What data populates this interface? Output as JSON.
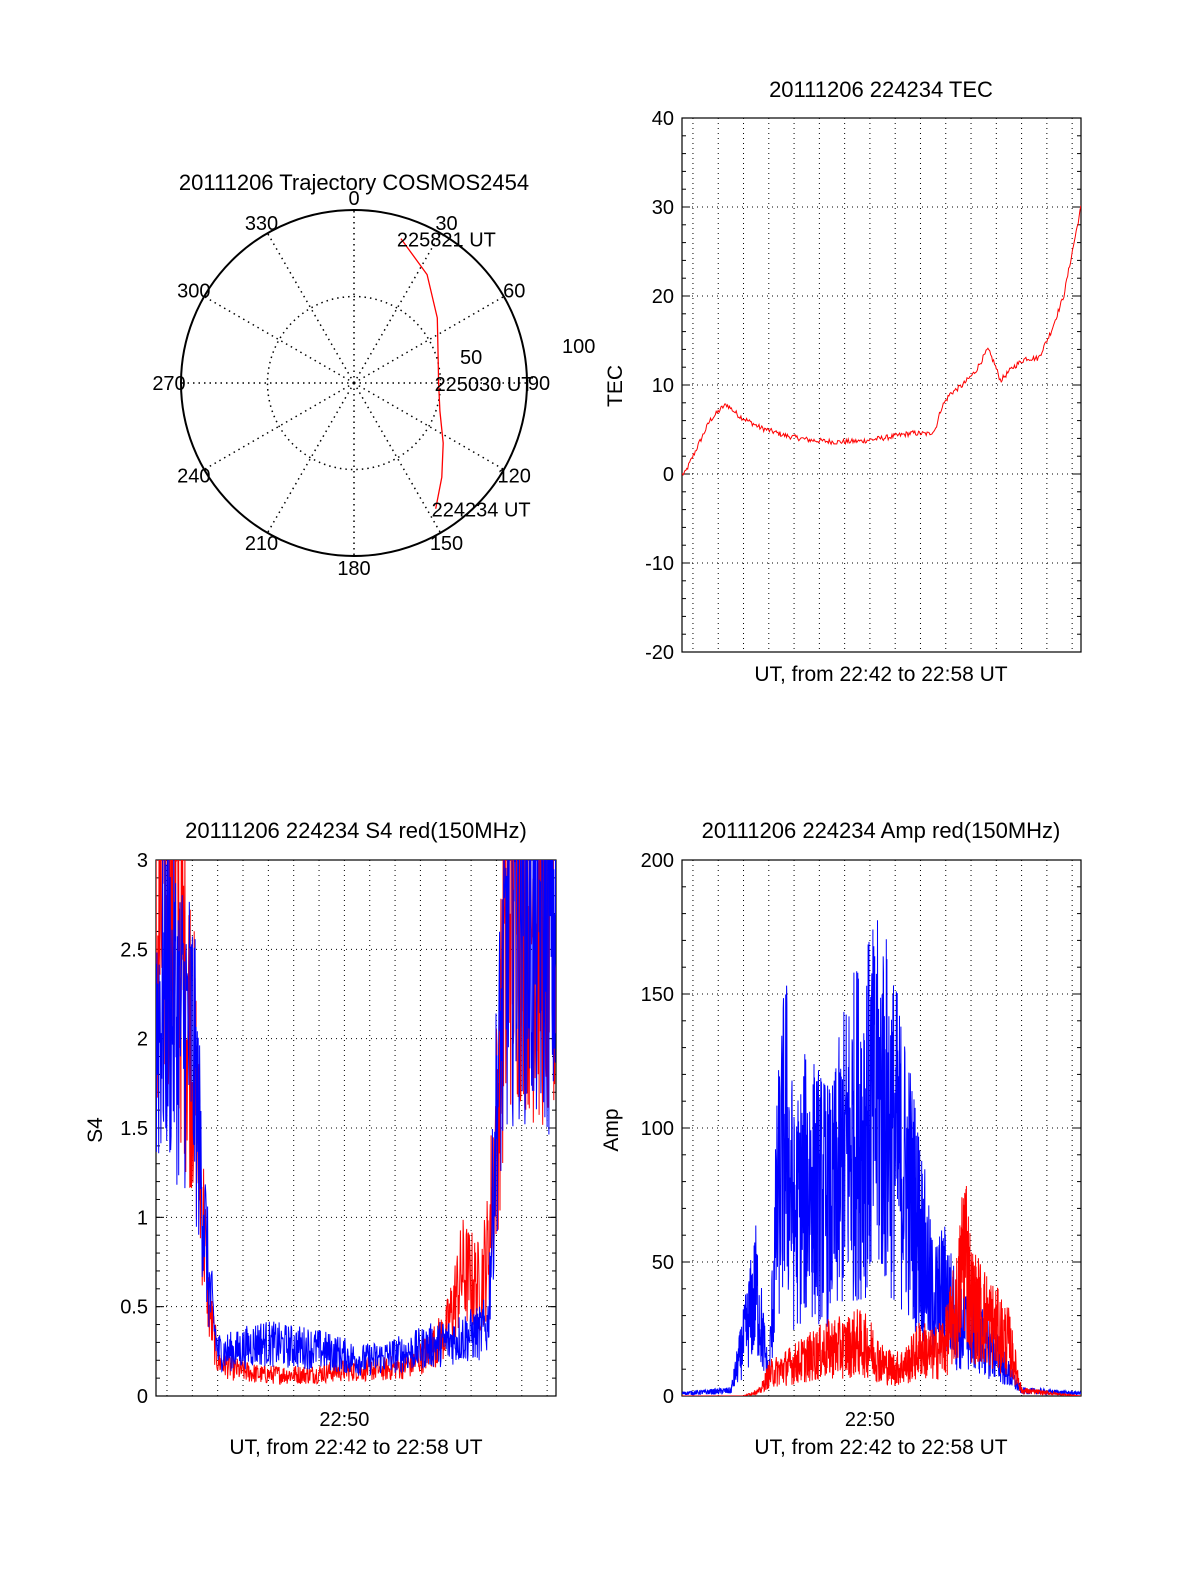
{
  "colors": {
    "red": "#ff0000",
    "blue": "#0000ff",
    "axis": "#000000",
    "grid": "#000000"
  },
  "chart_data": [
    {
      "id": "trajectory",
      "type": "polar",
      "title": "20111206 Trajectory COSMOS2454",
      "angle_ticks": [
        "0",
        "30",
        "60",
        "90",
        "120",
        "150",
        "180",
        "210",
        "240",
        "270",
        "300",
        "330"
      ],
      "radius_ticks": [
        "50",
        "100"
      ],
      "grid": true,
      "series": [
        {
          "color": "#ff0000",
          "points": [
            {
              "az": 18,
              "el": 11,
              "label": "225821 UT"
            },
            {
              "az": 34,
              "el": 22
            },
            {
              "az": 52,
              "el": 35
            },
            {
              "az": 72,
              "el": 44
            },
            {
              "az": 90,
              "el": 46,
              "label": "225030 UT"
            },
            {
              "az": 108,
              "el": 43
            },
            {
              "az": 124,
              "el": 34
            },
            {
              "az": 137,
              "el": 23
            },
            {
              "az": 147,
              "el": 12,
              "label": "224234 UT"
            }
          ]
        }
      ]
    },
    {
      "id": "tec",
      "type": "line",
      "title": "20111206 224234 TEC",
      "xlabel": "UT, from 22:42 to 22:58 UT",
      "ylabel": "TEC",
      "ylim": [
        -20,
        40
      ],
      "yticks": [
        "-20",
        "-10",
        "0",
        "10",
        "20",
        "30",
        "40"
      ],
      "xlim": [
        "22:42:34",
        "22:58:21"
      ],
      "grid": true,
      "series": [
        {
          "color": "#ff0000",
          "x": [
            "22:42:40",
            "22:43:10",
            "22:43:40",
            "22:44:10",
            "22:44:20",
            "22:44:50",
            "22:45:40",
            "22:46:40",
            "22:47:40",
            "22:48:40",
            "22:49:40",
            "22:50:40",
            "22:51:40",
            "22:52:20",
            "22:52:35",
            "22:52:50",
            "22:53:10",
            "22:53:40",
            "22:54:10",
            "22:54:40",
            "22:54:55",
            "22:55:10",
            "22:55:40",
            "22:56:10",
            "22:56:40",
            "22:57:10",
            "22:57:40",
            "22:58:21"
          ],
          "y": [
            0,
            3,
            6,
            7.5,
            7.8,
            6.5,
            5.2,
            4.3,
            3.8,
            3.6,
            3.7,
            4.1,
            4.6,
            4.5,
            5,
            7.5,
            9,
            10,
            11.5,
            14,
            12.5,
            10.5,
            12,
            13,
            13,
            16,
            20,
            30
          ]
        }
      ]
    },
    {
      "id": "s4",
      "type": "line",
      "title": "20111206 224234 S4 red(150MHz)",
      "xlabel": "UT, from 22:42 to 22:58 UT",
      "ylabel": "S4",
      "ylim": [
        0,
        3
      ],
      "yticks": [
        "0",
        "0.5",
        "1",
        "1.5",
        "2",
        "2.5",
        "3"
      ],
      "xlim": [
        "22:42:34",
        "22:58:21"
      ],
      "xticks": [
        {
          "x": "22:50",
          "label": "22:50"
        }
      ],
      "grid": true,
      "series": [
        {
          "color": "#ff0000",
          "x": [
            "22:42:34",
            "22:43:00",
            "22:43:30",
            "22:44:00",
            "22:44:20",
            "22:44:40",
            "22:45:00",
            "22:45:40",
            "22:46:40",
            "22:47:40",
            "22:48:40",
            "22:49:40",
            "22:50:40",
            "22:51:40",
            "22:52:40",
            "22:53:20",
            "22:54:00",
            "22:54:40",
            "22:55:20",
            "22:55:40",
            "22:56:00",
            "22:56:30",
            "22:57:00",
            "22:57:30",
            "22:58:21"
          ],
          "y": [
            2.4,
            2.9,
            2.5,
            2.0,
            1.2,
            0.5,
            0.2,
            0.15,
            0.12,
            0.12,
            0.12,
            0.14,
            0.15,
            0.15,
            0.18,
            0.25,
            0.35,
            0.7,
            0.6,
            0.8,
            1.5,
            2.8,
            2.9,
            2.7,
            2.5
          ]
        },
        {
          "color": "#0000ff",
          "x": [
            "22:42:34",
            "22:43:00",
            "22:43:30",
            "22:44:00",
            "22:44:20",
            "22:44:40",
            "22:45:00",
            "22:45:40",
            "22:46:40",
            "22:47:40",
            "22:48:40",
            "22:49:40",
            "22:50:40",
            "22:51:40",
            "22:52:40",
            "22:53:20",
            "22:54:00",
            "22:54:40",
            "22:55:20",
            "22:55:40",
            "22:56:00",
            "22:56:30",
            "22:57:00",
            "22:57:30",
            "22:58:21"
          ],
          "y": [
            2.1,
            2.3,
            2.1,
            2.0,
            1.3,
            0.6,
            0.25,
            0.25,
            0.3,
            0.28,
            0.27,
            0.24,
            0.2,
            0.22,
            0.25,
            0.28,
            0.3,
            0.33,
            0.35,
            0.4,
            1.6,
            2.7,
            2.8,
            2.6,
            2.6
          ]
        }
      ]
    },
    {
      "id": "amp",
      "type": "line",
      "title": "20111206 224234 Amp red(150MHz)",
      "xlabel": "UT, from 22:42 to 22:58 UT",
      "ylabel": "Amp",
      "ylim": [
        0,
        200
      ],
      "yticks": [
        "0",
        "50",
        "100",
        "150",
        "200"
      ],
      "xlim": [
        "22:42:34",
        "22:58:21"
      ],
      "xticks": [
        {
          "x": "22:50",
          "label": "22:50"
        }
      ],
      "grid": true,
      "series": [
        {
          "color": "#0000ff",
          "x": [
            "22:42:34",
            "22:44:30",
            "22:45:00",
            "22:45:30",
            "22:46:00",
            "22:46:20",
            "22:46:40",
            "22:47:00",
            "22:47:30",
            "22:48:00",
            "22:48:30",
            "22:49:00",
            "22:49:30",
            "22:50:00",
            "22:50:30",
            "22:51:00",
            "22:51:30",
            "22:52:00",
            "22:52:30",
            "22:53:00",
            "22:53:30",
            "22:54:00",
            "22:54:30",
            "22:55:00",
            "22:55:30",
            "22:56:00",
            "22:58:21"
          ],
          "y": [
            1,
            2,
            20,
            40,
            6,
            70,
            100,
            65,
            80,
            75,
            70,
            90,
            100,
            105,
            110,
            95,
            80,
            60,
            35,
            40,
            25,
            25,
            20,
            15,
            8,
            2,
            1
          ]
        },
        {
          "color": "#ff0000",
          "x": [
            "22:42:34",
            "22:45:00",
            "22:45:40",
            "22:46:00",
            "22:46:30",
            "22:47:00",
            "22:47:30",
            "22:48:00",
            "22:48:30",
            "22:49:00",
            "22:49:30",
            "22:50:00",
            "22:50:30",
            "22:51:00",
            "22:51:30",
            "22:52:00",
            "22:52:30",
            "22:53:00",
            "22:53:30",
            "22:53:45",
            "22:54:00",
            "22:54:30",
            "22:55:00",
            "22:55:30",
            "22:56:00",
            "22:58:21"
          ],
          "y": [
            0,
            0,
            2,
            8,
            10,
            12,
            14,
            16,
            18,
            18,
            20,
            18,
            12,
            10,
            12,
            18,
            15,
            20,
            35,
            60,
            35,
            30,
            25,
            20,
            2,
            0
          ]
        }
      ]
    }
  ]
}
